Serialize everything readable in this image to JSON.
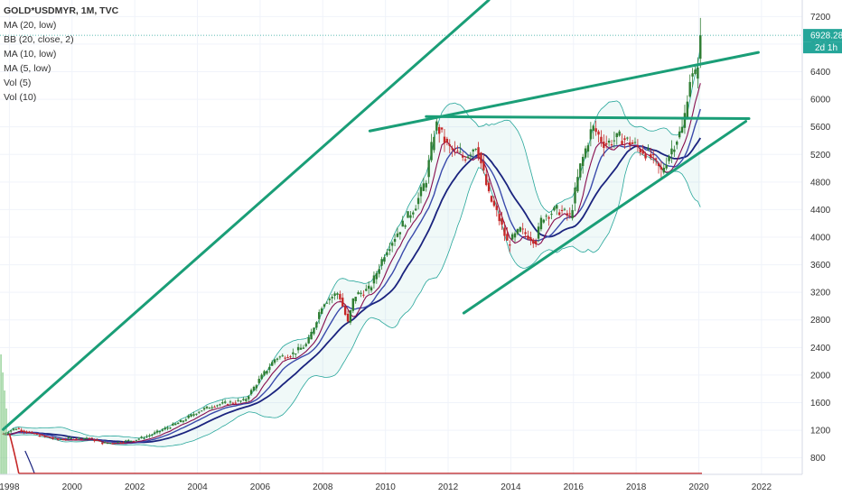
{
  "legend": {
    "symbol": "GOLD*USDMYR, 1M, TVC",
    "indicators": [
      "MA (20, low)",
      "BB (20, close, 2)",
      "MA (10, low)",
      "MA (5, low)",
      "Vol (5)",
      "Vol (10)"
    ]
  },
  "price_badge": {
    "price": "6928.28",
    "countdown": "2d 1h"
  },
  "colors": {
    "trendline": "#1a9e77",
    "up": "#2e7d32",
    "down": "#c62828",
    "ma20": "#1a237e",
    "ma10": "#3949ab",
    "ma5": "#880e4f",
    "bb": "#26a69a",
    "volume": "#81c784",
    "vol_ma": "#c62828"
  },
  "chart_data": {
    "type": "candlestick",
    "x_ticks": [
      "1998",
      "2000",
      "2002",
      "2004",
      "2006",
      "2008",
      "2010",
      "2012",
      "2014",
      "2016",
      "2018",
      "2020",
      "2022"
    ],
    "y_ticks": [
      800,
      1200,
      1600,
      2000,
      2400,
      2800,
      3200,
      3600,
      4000,
      4400,
      4800,
      5200,
      5600,
      6000,
      6400,
      6800,
      7200
    ],
    "xlim": [
      1997.7,
      2023.3
    ],
    "ylim": [
      560,
      7440
    ],
    "last_price": 6928.28,
    "price_path": [
      [
        1997.8,
        1150
      ],
      [
        1998.2,
        1230
      ],
      [
        1998.6,
        1170
      ],
      [
        1999.0,
        1120
      ],
      [
        1999.5,
        1070
      ],
      [
        2000.0,
        1080
      ],
      [
        2000.5,
        1090
      ],
      [
        2001.0,
        1010
      ],
      [
        2001.5,
        1030
      ],
      [
        2002.0,
        1060
      ],
      [
        2002.5,
        1130
      ],
      [
        2003.0,
        1230
      ],
      [
        2003.5,
        1330
      ],
      [
        2004.0,
        1470
      ],
      [
        2004.5,
        1560
      ],
      [
        2005.0,
        1600
      ],
      [
        2005.5,
        1630
      ],
      [
        2006.0,
        1950
      ],
      [
        2006.5,
        2250
      ],
      [
        2007.0,
        2300
      ],
      [
        2007.5,
        2450
      ],
      [
        2008.0,
        3050
      ],
      [
        2008.5,
        3200
      ],
      [
        2008.8,
        2750
      ],
      [
        2009.0,
        3150
      ],
      [
        2009.5,
        3250
      ],
      [
        2010.0,
        3800
      ],
      [
        2010.5,
        4150
      ],
      [
        2011.0,
        4500
      ],
      [
        2011.3,
        4850
      ],
      [
        2011.6,
        5650
      ],
      [
        2012.0,
        5300
      ],
      [
        2012.5,
        5150
      ],
      [
        2012.9,
        5350
      ],
      [
        2013.3,
        4600
      ],
      [
        2013.6,
        4300
      ],
      [
        2013.9,
        3900
      ],
      [
        2014.3,
        4100
      ],
      [
        2014.8,
        3950
      ],
      [
        2015.0,
        4300
      ],
      [
        2015.5,
        4400
      ],
      [
        2015.9,
        4300
      ],
      [
        2016.2,
        5000
      ],
      [
        2016.6,
        5600
      ],
      [
        2017.0,
        5350
      ],
      [
        2017.5,
        5450
      ],
      [
        2017.9,
        5350
      ],
      [
        2018.4,
        5200
      ],
      [
        2018.8,
        4950
      ],
      [
        2019.2,
        5350
      ],
      [
        2019.5,
        5600
      ],
      [
        2019.7,
        6300
      ],
      [
        2019.9,
        6350
      ],
      [
        2020.0,
        6650
      ],
      [
        2020.1,
        6928
      ]
    ],
    "volume_spike": {
      "x": 1997.8,
      "price_equivalent": 2300
    },
    "trendlines": [
      {
        "name": "long-term-support",
        "from": [
          1997.8,
          1210
        ],
        "to": [
          2013.3,
          7440
        ]
      },
      {
        "name": "upper-rising-channel",
        "from": [
          2009.5,
          5540
        ],
        "to": [
          2021.9,
          6680
        ]
      },
      {
        "name": "horizontal-resistance",
        "from": [
          2011.3,
          5750
        ],
        "to": [
          2021.6,
          5720
        ]
      },
      {
        "name": "lower-channel",
        "from": [
          2012.5,
          2900
        ],
        "to": [
          2021.5,
          5680
        ]
      }
    ]
  }
}
